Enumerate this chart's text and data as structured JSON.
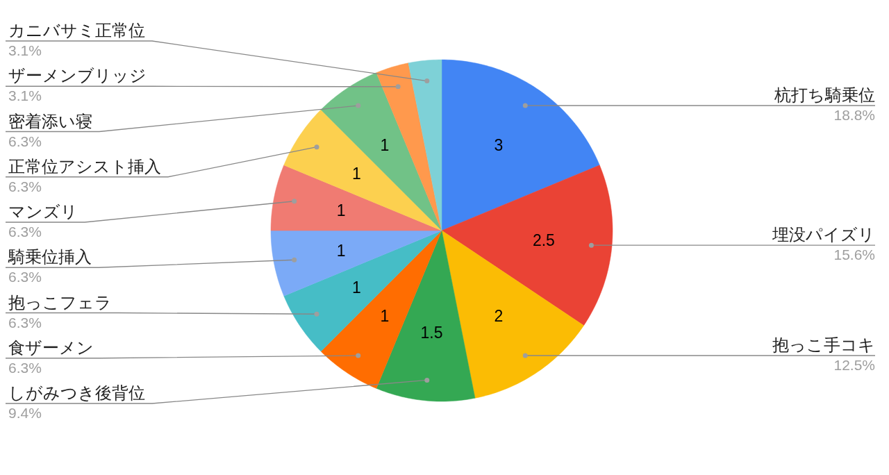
{
  "chart_data": {
    "type": "pie",
    "categories": [
      "杭打ち騎乗位",
      "埋没パイズリ",
      "抱っこ手コキ",
      "しがみつき後背位",
      "食ザーメン",
      "抱っこフェラ",
      "騎乗位挿入",
      "マンズリ",
      "正常位アシスト挿入",
      "密着添い寝",
      "ザーメンブリッジ",
      "カニバサミ正常位"
    ],
    "values": [
      3,
      2.5,
      2,
      1.5,
      1,
      1,
      1,
      1,
      1,
      1,
      0.5,
      0.5
    ],
    "colors": [
      "#4285f4",
      "#ea4335",
      "#fbbc04",
      "#34a853",
      "#ff6d01",
      "#46bdc6",
      "#7baaf7",
      "#f07b72",
      "#fcd04f",
      "#71c287",
      "#ff994d",
      "#7ed1d7"
    ],
    "value_labels": [
      "3",
      "2.5",
      "2",
      "1.5",
      "1",
      "1",
      "1",
      "1",
      "1",
      "1",
      null,
      null
    ],
    "annotations": [
      "18.8%",
      "15.6%",
      "12.5%",
      "9.4%",
      "6.3%",
      "6.3%",
      "6.3%",
      "6.3%",
      "6.3%",
      "6.3%",
      "3.1%",
      "3.1%"
    ]
  }
}
